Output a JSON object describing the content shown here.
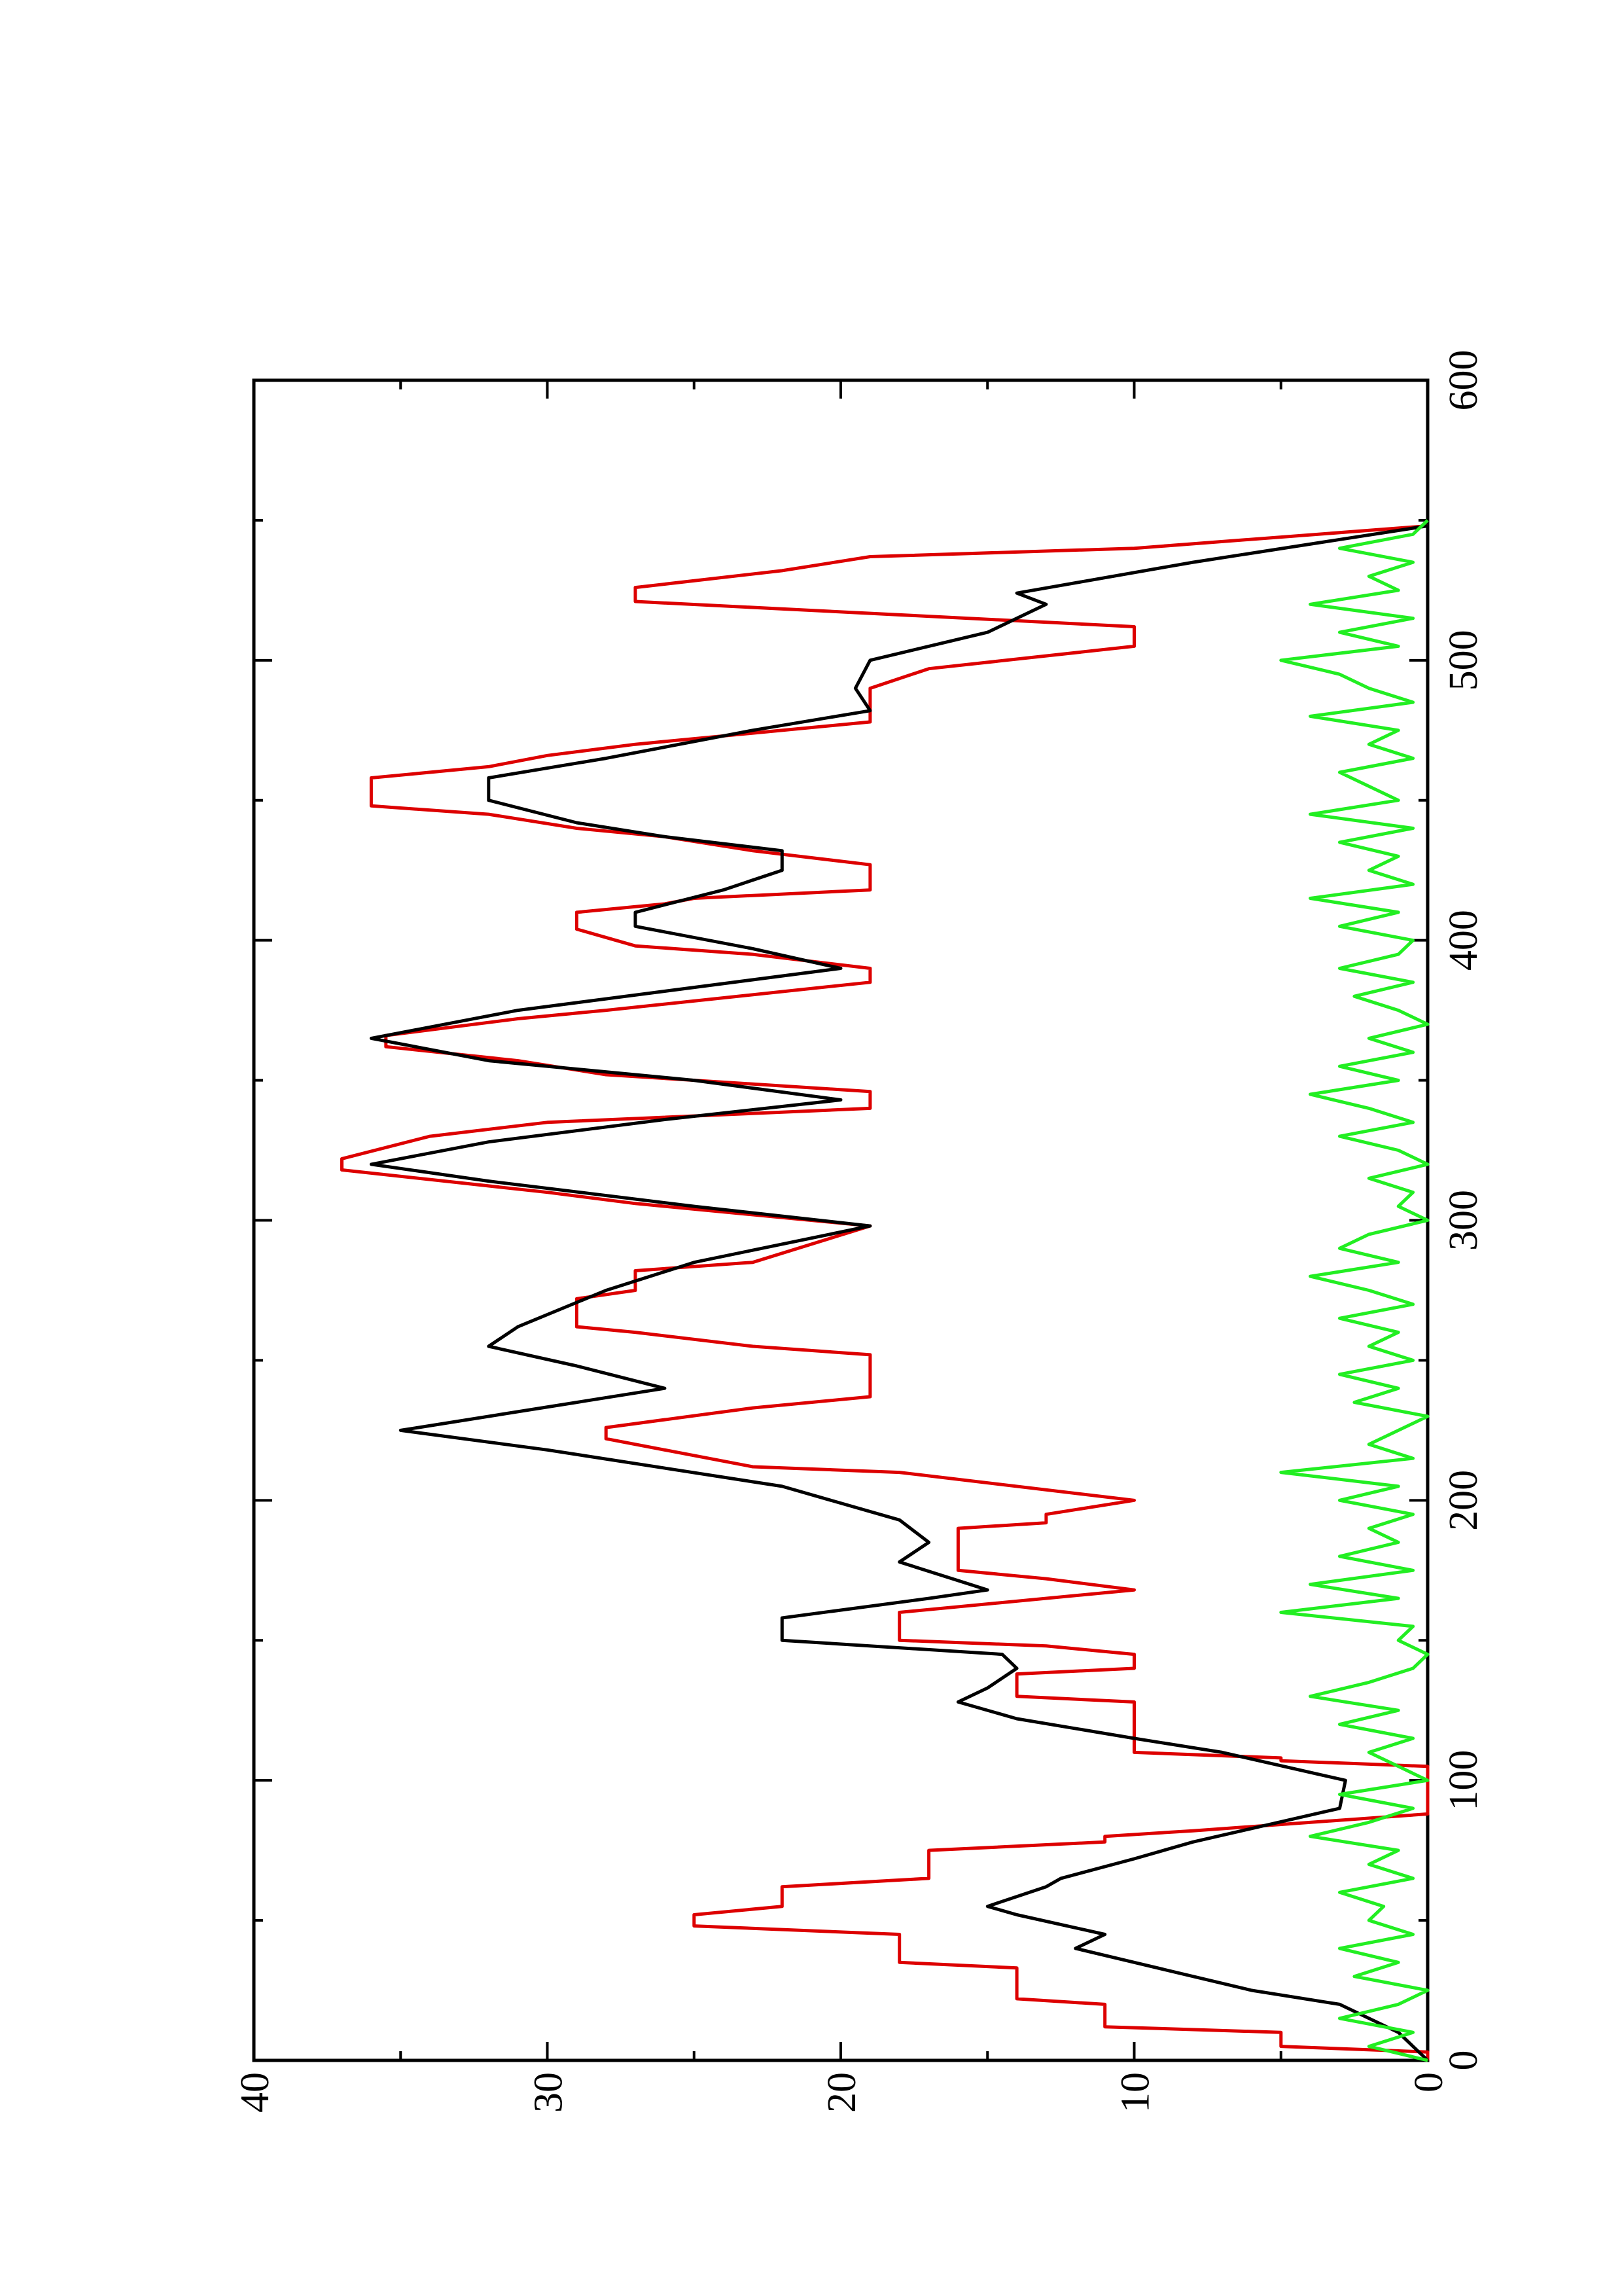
{
  "chart_data": {
    "type": "line",
    "xlim": [
      0,
      600
    ],
    "xticks": [
      0,
      100,
      200,
      300,
      400,
      500,
      600
    ],
    "xminorticks": [
      50,
      150,
      250,
      350,
      450,
      550
    ],
    "ylim": [
      0,
      40
    ],
    "yticks": [
      0,
      10,
      20,
      30,
      40
    ],
    "yminorticks": [
      5,
      15,
      25,
      35
    ],
    "series": [
      {
        "color": "#dd0000",
        "x": [
          0,
          3,
          5,
          10,
          12,
          20,
          22,
          33,
          35,
          45,
          48,
          52,
          55,
          62,
          65,
          75,
          78,
          80,
          82,
          88,
          105,
          107,
          108,
          110,
          128,
          130,
          138,
          140,
          145,
          148,
          150,
          160,
          168,
          172,
          175,
          190,
          192,
          195,
          200,
          210,
          212,
          222,
          226,
          233,
          237,
          252,
          255,
          260,
          262,
          272,
          275,
          282,
          285,
          298,
          306,
          310,
          318,
          322,
          330,
          335,
          340,
          346,
          352,
          357,
          362,
          366,
          372,
          375,
          385,
          390,
          395,
          398,
          404,
          410,
          413,
          415,
          418,
          427,
          432,
          437,
          440,
          445,
          448,
          458,
          462,
          466,
          470,
          478,
          490,
          497,
          505,
          512,
          521,
          526,
          532,
          537,
          540,
          548
        ],
        "values": [
          0,
          0,
          5,
          5,
          11,
          11,
          14,
          14,
          18,
          18,
          25,
          25,
          22,
          22,
          17,
          17,
          11,
          11,
          8,
          0,
          0,
          5,
          5,
          10,
          10,
          14,
          14,
          10,
          10,
          13,
          18,
          18,
          10,
          13,
          16,
          16,
          13,
          13,
          10,
          18,
          23,
          28,
          28,
          23,
          19,
          19,
          23,
          27,
          29,
          29,
          27,
          27,
          23,
          19,
          27,
          30,
          37,
          37,
          34,
          30,
          19,
          19,
          28,
          31,
          35.5,
          35.5,
          31,
          28,
          19,
          19,
          23,
          27,
          29,
          29,
          26,
          25,
          19,
          19,
          23,
          26,
          29,
          32,
          36,
          36,
          32,
          30,
          27,
          19,
          19,
          17,
          10,
          10,
          27,
          27,
          22,
          19,
          10,
          0
        ]
      },
      {
        "color": "#000000",
        "x": [
          0,
          10,
          20,
          25,
          35,
          40,
          45,
          52,
          55,
          62,
          65,
          72,
          78,
          90,
          100,
          110,
          115,
          122,
          128,
          133,
          140,
          145,
          150,
          158,
          165,
          168,
          178,
          185,
          193,
          205,
          218,
          225,
          235,
          240,
          248,
          255,
          262,
          275,
          285,
          298,
          305,
          314,
          320,
          328,
          336,
          343,
          350,
          357,
          365,
          375,
          390,
          397,
          405,
          410,
          418,
          425,
          432,
          437,
          442,
          450,
          458,
          465,
          475,
          482,
          490,
          500,
          510,
          520,
          524,
          535,
          548
        ],
        "values": [
          0,
          1,
          3,
          6,
          10,
          12,
          11,
          14,
          15,
          13,
          12.5,
          10,
          8,
          3,
          2.8,
          7,
          10,
          14,
          16,
          15,
          14,
          14.5,
          22,
          22,
          17,
          15,
          18,
          17,
          18,
          22,
          30,
          35,
          29,
          26,
          29,
          32,
          31,
          28,
          25,
          19,
          25,
          32,
          36,
          32,
          26,
          20,
          25,
          32,
          36,
          31,
          20,
          23,
          27,
          27,
          24,
          22,
          22,
          26,
          29,
          32,
          32,
          28,
          23,
          19,
          19.5,
          19,
          15,
          13,
          14,
          8,
          0
        ]
      },
      {
        "color": "#22ee22",
        "x": [
          0,
          5,
          10,
          15,
          20,
          25,
          30,
          35,
          40,
          45,
          50,
          55,
          60,
          65,
          70,
          75,
          80,
          85,
          90,
          95,
          100,
          105,
          110,
          115,
          120,
          125,
          130,
          135,
          140,
          145,
          150,
          155,
          160,
          165,
          170,
          175,
          180,
          185,
          190,
          195,
          200,
          205,
          210,
          215,
          220,
          225,
          230,
          235,
          240,
          245,
          250,
          255,
          260,
          265,
          270,
          275,
          280,
          285,
          290,
          295,
          300,
          305,
          310,
          315,
          320,
          325,
          330,
          335,
          340,
          345,
          350,
          355,
          360,
          365,
          370,
          375,
          380,
          385,
          390,
          395,
          400,
          405,
          410,
          415,
          420,
          425,
          430,
          435,
          440,
          445,
          450,
          455,
          460,
          465,
          470,
          475,
          480,
          485,
          490,
          495,
          500,
          505,
          510,
          515,
          520,
          525,
          530,
          535,
          540,
          545,
          550
        ],
        "values": [
          0,
          2,
          0.5,
          3,
          1,
          0,
          2.5,
          1,
          3,
          0.5,
          2,
          1.5,
          3,
          0.5,
          2,
          1,
          4,
          2,
          0.5,
          3,
          0,
          1,
          2,
          0.5,
          3,
          1,
          4,
          2,
          0.5,
          0,
          1,
          0.5,
          5,
          1,
          4,
          0.5,
          3,
          1,
          2,
          0.5,
          3,
          1,
          5,
          0.5,
          2,
          1,
          0,
          2.5,
          1,
          3,
          0.5,
          2,
          1,
          3,
          0.5,
          2,
          4,
          1,
          3,
          2,
          0,
          1,
          0.5,
          2,
          0,
          1,
          3,
          0.5,
          2,
          4,
          1,
          3,
          0.5,
          2,
          0,
          1,
          2.5,
          0.5,
          3,
          1,
          0.5,
          3,
          1,
          4,
          0.5,
          2,
          1,
          3,
          0.5,
          4,
          1,
          2,
          3,
          0.5,
          2,
          1,
          4,
          0.5,
          2,
          3,
          5,
          1,
          3,
          0.5,
          4,
          1,
          2,
          0.5,
          3,
          0.5,
          0
        ]
      }
    ]
  }
}
